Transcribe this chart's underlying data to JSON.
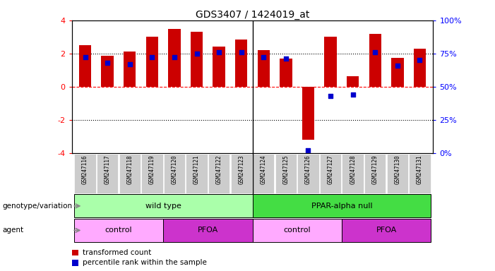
{
  "title": "GDS3407 / 1424019_at",
  "samples": [
    "GSM247116",
    "GSM247117",
    "GSM247118",
    "GSM247119",
    "GSM247120",
    "GSM247121",
    "GSM247122",
    "GSM247123",
    "GSM247124",
    "GSM247125",
    "GSM247126",
    "GSM247127",
    "GSM247128",
    "GSM247129",
    "GSM247130",
    "GSM247131"
  ],
  "bar_values": [
    2.5,
    1.85,
    2.1,
    3.0,
    3.5,
    3.3,
    2.4,
    2.85,
    2.2,
    1.7,
    -3.2,
    3.0,
    0.65,
    3.2,
    1.75,
    2.3
  ],
  "percentile_values": [
    72,
    68,
    67,
    72,
    72,
    75,
    76,
    76,
    72,
    71,
    2,
    43,
    44,
    76,
    66,
    70
  ],
  "bar_color": "#cc0000",
  "dot_color": "#0000cc",
  "ylim": [
    -4,
    4
  ],
  "y2lim": [
    0,
    100
  ],
  "yticks": [
    -4,
    -2,
    0,
    2,
    4
  ],
  "y2ticks": [
    0,
    25,
    50,
    75,
    100
  ],
  "y2ticklabels": [
    "0%",
    "25%",
    "50%",
    "75%",
    "100%"
  ],
  "genotype_groups": [
    {
      "label": "wild type",
      "start": 0,
      "end": 7,
      "color": "#aaffaa"
    },
    {
      "label": "PPAR-alpha null",
      "start": 8,
      "end": 15,
      "color": "#44dd44"
    }
  ],
  "agent_groups": [
    {
      "label": "control",
      "start": 0,
      "end": 3,
      "color": "#ffaaff"
    },
    {
      "label": "PFOA",
      "start": 4,
      "end": 7,
      "color": "#cc33cc"
    },
    {
      "label": "control",
      "start": 8,
      "end": 11,
      "color": "#ffaaff"
    },
    {
      "label": "PFOA",
      "start": 12,
      "end": 15,
      "color": "#cc33cc"
    }
  ],
  "genotype_label": "genotype/variation",
  "agent_label": "agent",
  "legend_items": [
    {
      "color": "#cc0000",
      "label": "transformed count"
    },
    {
      "color": "#0000cc",
      "label": "percentile rank within the sample"
    }
  ],
  "bar_width": 0.55,
  "separator_idx": 7.5,
  "n_samples": 16,
  "fig_width": 7.01,
  "fig_height": 3.84
}
